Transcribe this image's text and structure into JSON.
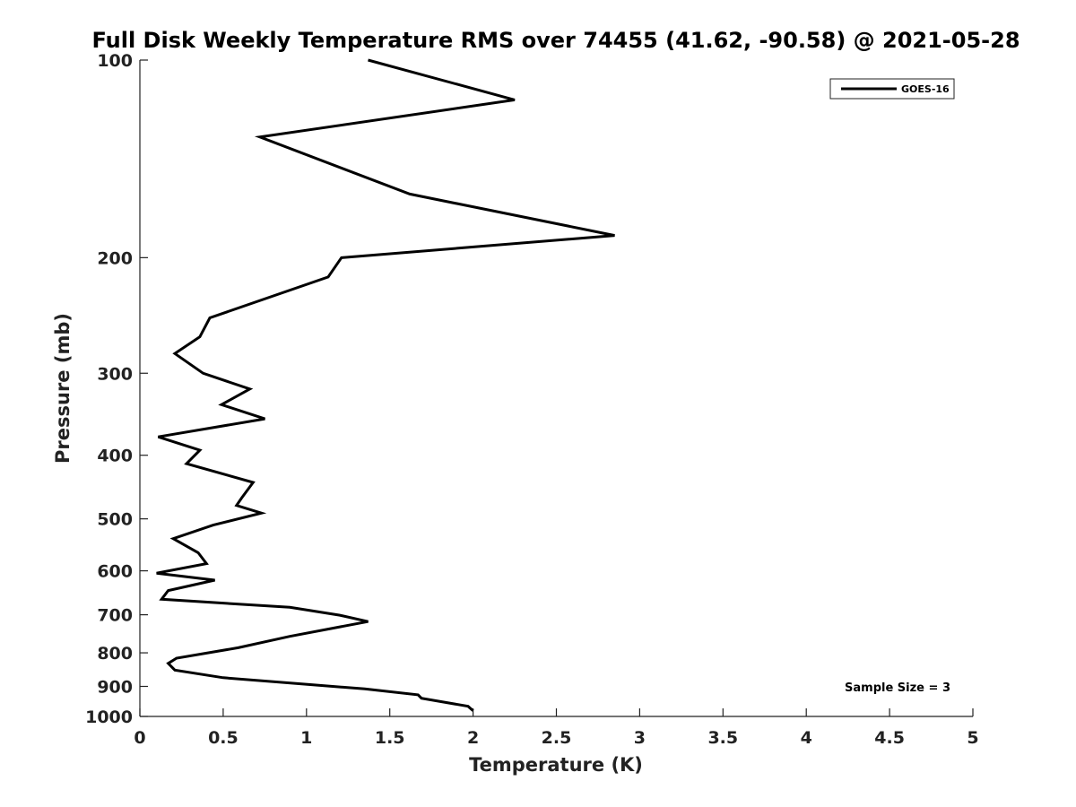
{
  "chart_data": {
    "type": "line",
    "title": "Full Disk Weekly Temperature RMS over 74455 (41.62, -90.58) @ 2021-05-28",
    "xlabel": "Temperature (K)",
    "ylabel": "Pressure (mb)",
    "xlim": [
      0,
      5
    ],
    "ylim": [
      1000,
      100
    ],
    "y_scale": "log",
    "y_reversed": true,
    "x_ticks": [
      "0",
      "0.5",
      "1",
      "1.5",
      "2",
      "2.5",
      "3",
      "3.5",
      "4",
      "4.5",
      "5"
    ],
    "y_ticks": [
      "100",
      "200",
      "300",
      "400",
      "500",
      "600",
      "700",
      "800",
      "900",
      "1000"
    ],
    "grid": false,
    "legend_position": "top-right",
    "series": [
      {
        "name": "GOES-16",
        "color": "#000000",
        "points": [
          [
            1.37,
            100
          ],
          [
            2.25,
            115
          ],
          [
            0.72,
            131
          ],
          [
            1.62,
            160
          ],
          [
            2.85,
            185
          ],
          [
            1.21,
            200
          ],
          [
            1.13,
            214
          ],
          [
            0.42,
            247
          ],
          [
            0.36,
            264
          ],
          [
            0.21,
            280
          ],
          [
            0.38,
            300
          ],
          [
            0.66,
            317
          ],
          [
            0.49,
            335
          ],
          [
            0.75,
            352
          ],
          [
            0.11,
            375
          ],
          [
            0.36,
            393
          ],
          [
            0.28,
            412
          ],
          [
            0.68,
            440
          ],
          [
            0.61,
            465
          ],
          [
            0.58,
            477
          ],
          [
            0.73,
            490
          ],
          [
            0.44,
            511
          ],
          [
            0.2,
            536
          ],
          [
            0.35,
            563
          ],
          [
            0.4,
            585
          ],
          [
            0.1,
            605
          ],
          [
            0.45,
            620
          ],
          [
            0.17,
            643
          ],
          [
            0.13,
            663
          ],
          [
            0.9,
            682
          ],
          [
            1.2,
            701
          ],
          [
            1.37,
            717
          ],
          [
            0.9,
            755
          ],
          [
            0.59,
            786
          ],
          [
            0.22,
            815
          ],
          [
            0.17,
            830
          ],
          [
            0.21,
            850
          ],
          [
            0.5,
            873
          ],
          [
            1.35,
            908
          ],
          [
            1.67,
            927
          ],
          [
            1.69,
            938
          ],
          [
            1.97,
            965
          ],
          [
            2.0,
            980
          ]
        ]
      }
    ],
    "annotation": "Sample Size = 3"
  }
}
